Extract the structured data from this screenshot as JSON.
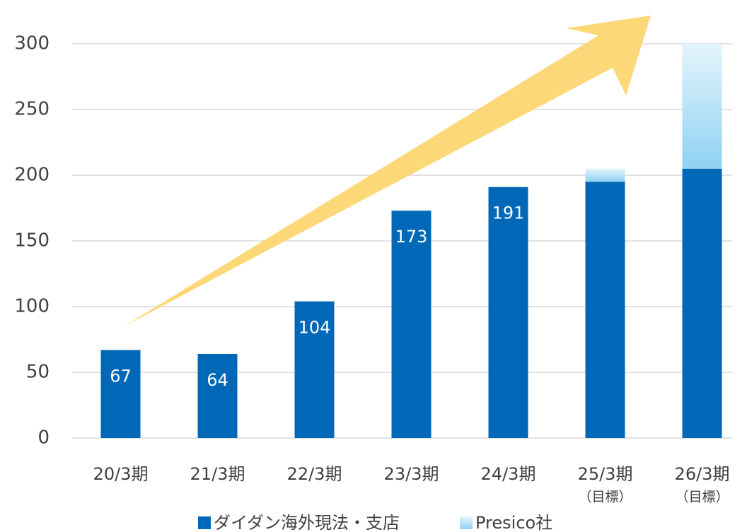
{
  "chart_data": {
    "type": "stacked_bar",
    "categories": [
      "20/3期",
      "21/3期",
      "22/3期",
      "23/3期",
      "24/3期",
      "25/3期",
      "26/3期"
    ],
    "category_sublabels": [
      null,
      null,
      null,
      null,
      null,
      "（目標）",
      "（目標）"
    ],
    "series": [
      {
        "name": "ダイダン海外現法・支店",
        "color": "#0068b7",
        "values": [
          67,
          64,
          104,
          173,
          191,
          195,
          205
        ],
        "labeled": [
          true,
          true,
          true,
          true,
          true,
          false,
          false
        ]
      },
      {
        "name": "Presico社",
        "color": "#9ed7f3",
        "values": [
          0,
          0,
          0,
          0,
          0,
          10,
          95
        ]
      }
    ],
    "ylim": [
      0,
      300
    ],
    "yticks": [
      0,
      50,
      100,
      150,
      200,
      250,
      300
    ],
    "grid": true
  }
}
